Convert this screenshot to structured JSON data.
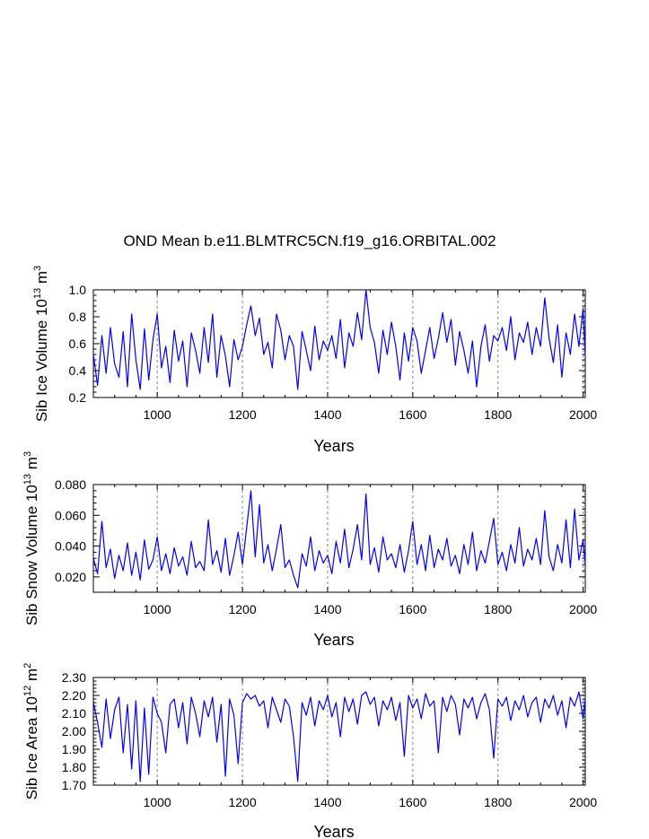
{
  "title": "OND Mean b.e11.BLMTRC5CN.f19_g16.ORBITAL.002",
  "colors": {
    "series": "#0000ff",
    "axis": "#000000",
    "grid": "#999999"
  },
  "chart_data": [
    {
      "type": "line",
      "title": "OND Mean b.e11.BLMTRC5CN.f19_g16.ORBITAL.002",
      "ylabel_main": "Sib Ice Volume 10",
      "ylabel_exp": "13",
      "ylabel_unit": "m",
      "ylabel_unit_exp": "3",
      "xlabel": "Years",
      "xlim": [
        850,
        2005
      ],
      "ylim": [
        0.2,
        1.0
      ],
      "xticks": [
        1000,
        1200,
        1400,
        1600,
        1800,
        2000
      ],
      "xtick_labels": [
        "1000",
        "1200",
        "1400",
        "1600",
        "1800",
        "2000"
      ],
      "yticks": [
        0.2,
        0.4,
        0.6,
        0.8,
        1.0
      ],
      "ytick_labels": [
        "0.2",
        "0.4",
        "0.6",
        "0.8",
        "1.0"
      ],
      "grid_x": true,
      "series": [
        {
          "name": "Sib Ice Volume",
          "x": [
            850,
            860,
            870,
            880,
            890,
            900,
            910,
            920,
            930,
            940,
            950,
            960,
            970,
            980,
            990,
            1000,
            1010,
            1020,
            1030,
            1040,
            1050,
            1060,
            1070,
            1080,
            1090,
            1100,
            1110,
            1120,
            1130,
            1140,
            1150,
            1160,
            1170,
            1180,
            1190,
            1200,
            1210,
            1220,
            1230,
            1240,
            1250,
            1260,
            1270,
            1280,
            1290,
            1300,
            1310,
            1320,
            1330,
            1340,
            1350,
            1360,
            1370,
            1380,
            1390,
            1400,
            1410,
            1420,
            1430,
            1440,
            1450,
            1460,
            1470,
            1480,
            1490,
            1500,
            1510,
            1520,
            1530,
            1540,
            1550,
            1560,
            1570,
            1580,
            1590,
            1600,
            1610,
            1620,
            1630,
            1640,
            1650,
            1660,
            1670,
            1680,
            1690,
            1700,
            1710,
            1720,
            1730,
            1740,
            1750,
            1760,
            1770,
            1780,
            1790,
            1800,
            1810,
            1820,
            1830,
            1840,
            1850,
            1860,
            1870,
            1880,
            1890,
            1900,
            1910,
            1920,
            1930,
            1940,
            1950,
            1960,
            1970,
            1980,
            1990,
            2000,
            2005
          ],
          "y": [
            0.52,
            0.29,
            0.66,
            0.38,
            0.72,
            0.45,
            0.35,
            0.69,
            0.28,
            0.82,
            0.48,
            0.26,
            0.71,
            0.33,
            0.63,
            0.82,
            0.42,
            0.58,
            0.31,
            0.7,
            0.47,
            0.62,
            0.28,
            0.68,
            0.55,
            0.38,
            0.72,
            0.46,
            0.82,
            0.35,
            0.66,
            0.51,
            0.28,
            0.63,
            0.48,
            0.58,
            0.74,
            0.88,
            0.66,
            0.79,
            0.52,
            0.61,
            0.42,
            0.82,
            0.7,
            0.48,
            0.66,
            0.58,
            0.26,
            0.69,
            0.55,
            0.4,
            0.73,
            0.48,
            0.62,
            0.55,
            0.66,
            0.49,
            0.78,
            0.42,
            0.68,
            0.58,
            0.83,
            0.63,
            1.0,
            0.72,
            0.61,
            0.38,
            0.7,
            0.52,
            0.76,
            0.58,
            0.33,
            0.68,
            0.47,
            0.72,
            0.62,
            0.38,
            0.55,
            0.72,
            0.49,
            0.64,
            0.83,
            0.61,
            0.78,
            0.44,
            0.69,
            0.55,
            0.38,
            0.62,
            0.28,
            0.58,
            0.74,
            0.47,
            0.66,
            0.62,
            0.72,
            0.55,
            0.8,
            0.48,
            0.68,
            0.61,
            0.76,
            0.52,
            0.72,
            0.58,
            0.94,
            0.64,
            0.46,
            0.74,
            0.35,
            0.68,
            0.52,
            0.82,
            0.58,
            0.86,
            0.5
          ]
        }
      ]
    },
    {
      "type": "line",
      "ylabel_main": "Sib Snow Volume 10",
      "ylabel_exp": "13",
      "ylabel_unit": "m",
      "ylabel_unit_exp": "3",
      "xlabel": "Years",
      "xlim": [
        850,
        2005
      ],
      "ylim": [
        0.01,
        0.08
      ],
      "xticks": [
        1000,
        1200,
        1400,
        1600,
        1800,
        2000
      ],
      "xtick_labels": [
        "1000",
        "1200",
        "1400",
        "1600",
        "1800",
        "2000"
      ],
      "yticks": [
        0.02,
        0.04,
        0.06,
        0.08
      ],
      "ytick_labels": [
        "0.020",
        "0.040",
        "0.060",
        "0.080"
      ],
      "grid_x": true,
      "series": [
        {
          "name": "Sib Snow Volume",
          "x": [
            850,
            860,
            870,
            880,
            890,
            900,
            910,
            920,
            930,
            940,
            950,
            960,
            970,
            980,
            990,
            1000,
            1010,
            1020,
            1030,
            1040,
            1050,
            1060,
            1070,
            1080,
            1090,
            1100,
            1110,
            1120,
            1130,
            1140,
            1150,
            1160,
            1170,
            1180,
            1190,
            1200,
            1210,
            1220,
            1230,
            1240,
            1250,
            1260,
            1270,
            1280,
            1290,
            1300,
            1310,
            1320,
            1330,
            1340,
            1350,
            1360,
            1370,
            1380,
            1390,
            1400,
            1410,
            1420,
            1430,
            1440,
            1450,
            1460,
            1470,
            1480,
            1490,
            1500,
            1510,
            1520,
            1530,
            1540,
            1550,
            1560,
            1570,
            1580,
            1590,
            1600,
            1610,
            1620,
            1630,
            1640,
            1650,
            1660,
            1670,
            1680,
            1690,
            1700,
            1710,
            1720,
            1730,
            1740,
            1750,
            1760,
            1770,
            1780,
            1790,
            1800,
            1810,
            1820,
            1830,
            1840,
            1850,
            1860,
            1870,
            1880,
            1890,
            1900,
            1910,
            1920,
            1930,
            1940,
            1950,
            1960,
            1970,
            1980,
            1990,
            2000,
            2005
          ],
          "y": [
            0.032,
            0.022,
            0.056,
            0.026,
            0.038,
            0.019,
            0.034,
            0.024,
            0.042,
            0.021,
            0.036,
            0.018,
            0.044,
            0.025,
            0.031,
            0.046,
            0.024,
            0.035,
            0.022,
            0.039,
            0.027,
            0.033,
            0.021,
            0.043,
            0.026,
            0.03,
            0.024,
            0.057,
            0.028,
            0.037,
            0.023,
            0.045,
            0.021,
            0.034,
            0.049,
            0.028,
            0.052,
            0.076,
            0.033,
            0.067,
            0.029,
            0.041,
            0.024,
            0.038,
            0.054,
            0.026,
            0.031,
            0.021,
            0.013,
            0.035,
            0.027,
            0.046,
            0.024,
            0.037,
            0.029,
            0.034,
            0.022,
            0.043,
            0.029,
            0.051,
            0.026,
            0.038,
            0.054,
            0.031,
            0.074,
            0.028,
            0.039,
            0.023,
            0.046,
            0.031,
            0.035,
            0.026,
            0.041,
            0.023,
            0.037,
            0.056,
            0.028,
            0.041,
            0.024,
            0.047,
            0.026,
            0.038,
            0.031,
            0.045,
            0.027,
            0.034,
            0.022,
            0.041,
            0.028,
            0.049,
            0.024,
            0.037,
            0.029,
            0.043,
            0.058,
            0.028,
            0.036,
            0.024,
            0.041,
            0.029,
            0.052,
            0.027,
            0.038,
            0.031,
            0.045,
            0.028,
            0.063,
            0.033,
            0.024,
            0.041,
            0.029,
            0.057,
            0.026,
            0.064,
            0.031,
            0.044,
            0.028
          ]
        }
      ]
    },
    {
      "type": "line",
      "ylabel_main": "Sib Ice Area 10",
      "ylabel_exp": "12",
      "ylabel_unit": "m",
      "ylabel_unit_exp": "2",
      "xlabel": "Years",
      "xlim": [
        850,
        2005
      ],
      "ylim": [
        1.7,
        2.3
      ],
      "xticks": [
        1000,
        1200,
        1400,
        1600,
        1800,
        2000
      ],
      "xtick_labels": [
        "1000",
        "1200",
        "1400",
        "1600",
        "1800",
        "2000"
      ],
      "yticks": [
        1.7,
        1.8,
        1.9,
        2.0,
        2.1,
        2.2,
        2.3
      ],
      "ytick_labels": [
        "1.70",
        "1.80",
        "1.90",
        "2.00",
        "2.10",
        "2.20",
        "2.30"
      ],
      "grid_x": true,
      "series": [
        {
          "name": "Sib Ice Area",
          "x": [
            850,
            860,
            870,
            880,
            890,
            900,
            910,
            920,
            930,
            940,
            950,
            960,
            970,
            980,
            990,
            1000,
            1010,
            1020,
            1030,
            1040,
            1050,
            1060,
            1070,
            1080,
            1090,
            1100,
            1110,
            1120,
            1130,
            1140,
            1150,
            1160,
            1170,
            1180,
            1190,
            1200,
            1210,
            1220,
            1230,
            1240,
            1250,
            1260,
            1270,
            1280,
            1290,
            1300,
            1310,
            1320,
            1330,
            1340,
            1350,
            1360,
            1370,
            1380,
            1390,
            1400,
            1410,
            1420,
            1430,
            1440,
            1450,
            1460,
            1470,
            1480,
            1490,
            1500,
            1510,
            1520,
            1530,
            1540,
            1550,
            1560,
            1570,
            1580,
            1590,
            1600,
            1610,
            1620,
            1630,
            1640,
            1650,
            1660,
            1670,
            1680,
            1690,
            1700,
            1710,
            1720,
            1730,
            1740,
            1750,
            1760,
            1770,
            1780,
            1790,
            1800,
            1810,
            1820,
            1830,
            1840,
            1850,
            1860,
            1870,
            1880,
            1890,
            1900,
            1910,
            1920,
            1930,
            1940,
            1950,
            1960,
            1970,
            1980,
            1990,
            2000,
            2005
          ],
          "y": [
            2.16,
            2.05,
            1.91,
            2.18,
            1.96,
            2.12,
            2.19,
            1.88,
            2.15,
            1.79,
            2.17,
            1.72,
            2.13,
            1.76,
            2.19,
            2.1,
            2.05,
            1.88,
            2.15,
            2.18,
            2.02,
            2.16,
            1.93,
            2.19,
            2.1,
            1.97,
            2.17,
            2.08,
            2.19,
            1.94,
            2.15,
            1.75,
            2.18,
            2.09,
            1.82,
            2.16,
            2.21,
            2.18,
            2.2,
            2.14,
            2.17,
            2.02,
            2.19,
            2.12,
            2.05,
            2.18,
            2.14,
            1.97,
            1.72,
            2.16,
            2.09,
            2.19,
            2.03,
            2.17,
            2.12,
            2.2,
            2.08,
            2.16,
            1.97,
            2.19,
            2.11,
            2.18,
            2.04,
            2.2,
            2.22,
            2.15,
            2.19,
            2.03,
            2.17,
            2.12,
            2.19,
            2.06,
            2.16,
            1.86,
            2.2,
            2.13,
            2.18,
            2.07,
            2.21,
            2.14,
            2.17,
            1.88,
            2.19,
            2.11,
            2.2,
            2.15,
            1.98,
            2.18,
            2.13,
            2.19,
            2.07,
            2.16,
            2.21,
            2.12,
            1.85,
            2.18,
            2.14,
            2.19,
            2.06,
            2.17,
            2.12,
            2.2,
            2.08,
            2.16,
            2.19,
            2.05,
            2.18,
            2.13,
            2.2,
            2.09,
            2.17,
            2.02,
            2.19,
            2.14,
            2.22,
            2.07,
            2.18
          ]
        }
      ]
    }
  ]
}
